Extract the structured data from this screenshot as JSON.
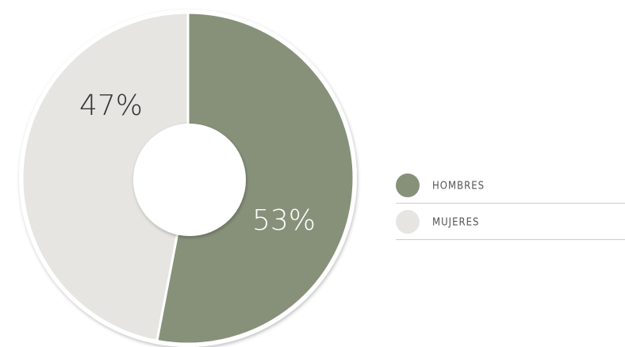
{
  "chart_data": {
    "type": "donut",
    "categories": [
      "HOMBRES",
      "MUJERES"
    ],
    "values": [
      53,
      47
    ],
    "value_labels": [
      "53%",
      "47%"
    ],
    "colors": [
      "#87917a",
      "#e6e5e1"
    ],
    "legend": "right"
  }
}
